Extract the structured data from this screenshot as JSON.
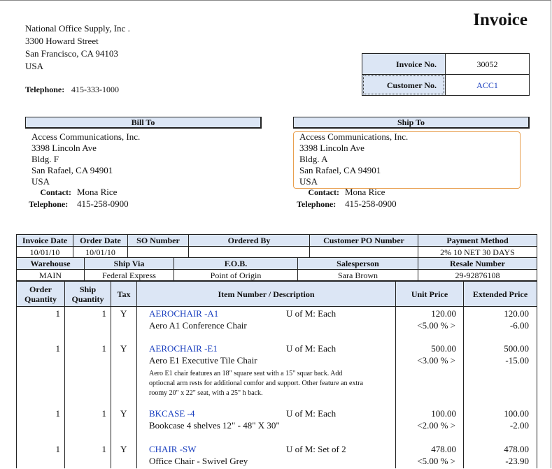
{
  "title": "Invoice",
  "company": {
    "lines": [
      "National Office Supply, Inc .",
      "3300  Howard Street",
      "San Francisco, CA 94103",
      "USA"
    ],
    "telephone_label": "Telephone:",
    "telephone": "415-333-1000"
  },
  "invoice_info": [
    {
      "label": "Invoice No.",
      "value": "30052"
    },
    {
      "label": "Customer No.",
      "value": "ACC1"
    }
  ],
  "bill_to": {
    "heading": "Bill To",
    "lines": [
      "Access Communications, Inc.",
      "3398  Lincoln Ave",
      "Bldg. F",
      "San Rafael, CA  94901",
      "USA"
    ],
    "contact_label": "Contact:",
    "contact": "Mona Rice",
    "telephone_label": "Telephone:",
    "telephone": "415-258-0900"
  },
  "ship_to": {
    "heading": "Ship To",
    "lines": [
      "Access Communications, Inc.",
      "3398  Lincoln Ave",
      "Bldg. A",
      "San Rafael, CA  94901",
      "USA"
    ],
    "contact_label": "Contact:",
    "contact": "Mona Rice",
    "telephone_label": "Telephone:",
    "telephone": "415-258-0900"
  },
  "order_table": {
    "row1": [
      {
        "header": "Invoice Date",
        "value": "10/01/10"
      },
      {
        "header": "Order Date",
        "value": "10/01/10"
      },
      {
        "header": "SO Number"
      },
      {
        "header": "Ordered By"
      },
      {
        "header": "Customer PO Number"
      },
      {
        "header": "Payment Method",
        "value": "2% 10 NET 30 DAYS"
      }
    ],
    "row2": [
      {
        "header": "Warehouse",
        "value": "MAIN"
      },
      {
        "header": "Ship Via",
        "value": "Federal Express"
      },
      {
        "header": "F.O.B.",
        "value": "Point of Origin"
      },
      {
        "header": "Salesperson",
        "value": "Sara Brown"
      },
      {
        "header": "Resale Number",
        "value": "29-92876108"
      }
    ]
  },
  "items_table": {
    "headers": [
      "Order Quantity",
      "Ship Quantity",
      "Tax",
      "Item Number / Description",
      "Unit Price",
      "Extended Price"
    ],
    "rows": [
      {
        "order_qty": "1",
        "ship_qty": "1",
        "tax": "Y",
        "item_number": "AEROCHAIR -A1",
        "uom": "U of M: Each",
        "description": "Aero A1 Conference Chair",
        "unit_price": "120.00",
        "discount": "<5.00 % >",
        "extended_price": "120.00",
        "discount_amount": "-6.00"
      },
      {
        "order_qty": "1",
        "ship_qty": "1",
        "tax": "Y",
        "item_number": "AEROCHAIR -E1",
        "uom": "U of M: Each",
        "description": "Aero E1 Executive Tile Chair",
        "note": "Aero E1 chair features an 18\" square seat with a 15\" squar back.  Add optiocnal arm rests for additional comfor and support.  Other feature an extra roomy 20\" x 22\" seat, with a 25\" h back.",
        "unit_price": "500.00",
        "discount": "<3.00 % >",
        "extended_price": "500.00",
        "discount_amount": "-15.00"
      },
      {
        "order_qty": "1",
        "ship_qty": "1",
        "tax": "Y",
        "item_number": "BKCASE -4",
        "uom": "U of M: Each",
        "description": "Bookcase 4 shelves 12\" - 48\" X 30\"",
        "unit_price": "100.00",
        "discount": "<2.00 % >",
        "extended_price": "100.00",
        "discount_amount": "-2.00"
      },
      {
        "order_qty": "1",
        "ship_qty": "1",
        "tax": "Y",
        "item_number": "CHAIR -SW",
        "uom": "U of M: Set of 2",
        "description": "Office Chair  - Swivel Grey",
        "unit_price": "478.00",
        "discount": "<5.00 % >",
        "extended_price": "478.00",
        "discount_amount": "-23.90"
      }
    ]
  }
}
